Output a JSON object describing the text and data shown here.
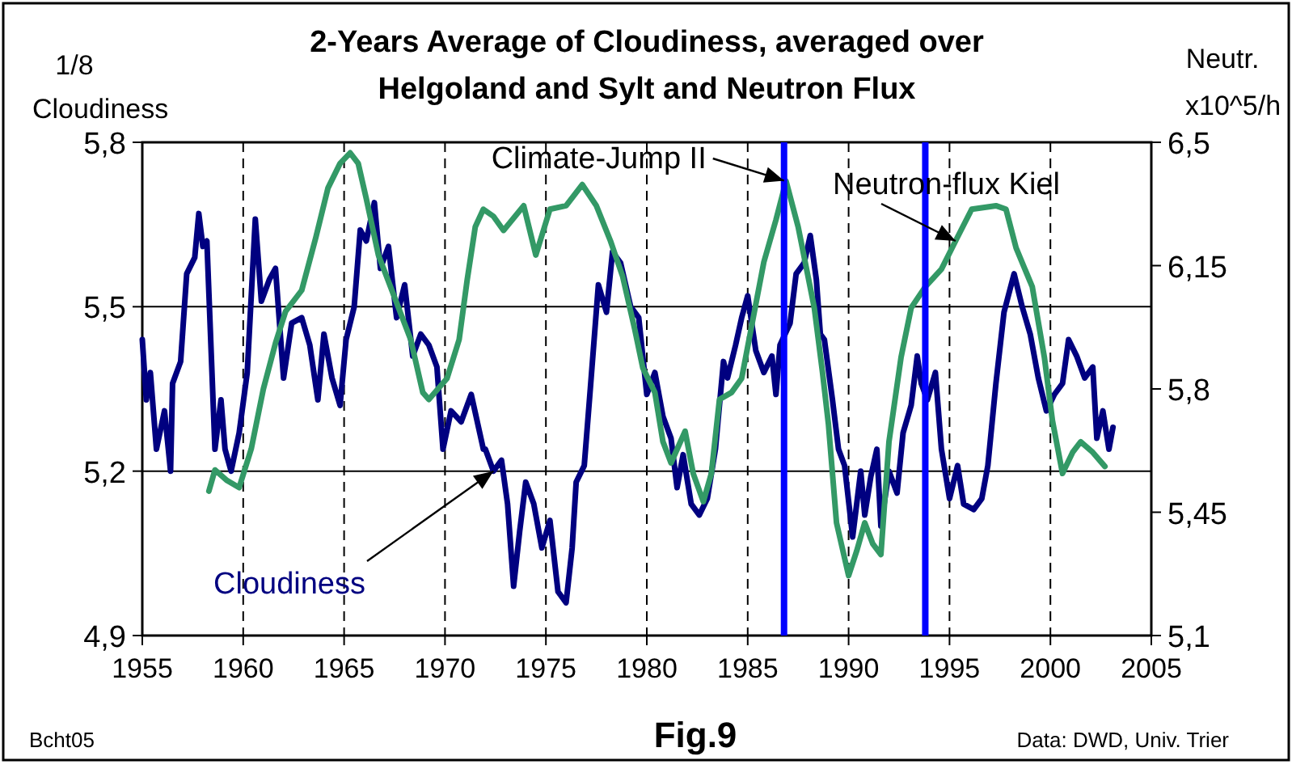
{
  "chart_data": {
    "type": "line",
    "title": "2-Years Average of Cloudiness, averaged over\nHelgoland and Sylt and  Neutron Flux",
    "ylabel": "1/8\nCloudiness",
    "y2label": "Neutr.\nx10^5/h",
    "xlim": [
      1955,
      2005
    ],
    "xticks": [
      1955,
      1960,
      1965,
      1970,
      1975,
      1980,
      1985,
      1990,
      1995,
      2000,
      2005
    ],
    "ylim": [
      4.9,
      5.8
    ],
    "yticks": [
      {
        "value": 4.9,
        "label": "4,9"
      },
      {
        "value": 5.2,
        "label": "5,2"
      },
      {
        "value": 5.5,
        "label": "5,5"
      },
      {
        "value": 5.8,
        "label": "5,8"
      }
    ],
    "y2lim": [
      5.1,
      6.5
    ],
    "y2ticks": [
      {
        "value": 5.1,
        "label": "5,1"
      },
      {
        "value": 5.45,
        "label": "5,45"
      },
      {
        "value": 5.8,
        "label": "5,8"
      },
      {
        "value": 6.15,
        "label": "6,15"
      },
      {
        "value": 6.5,
        "label": "6,5"
      }
    ],
    "grid": true,
    "legend": false,
    "marker": "none",
    "line_style": "solid",
    "series": [
      {
        "name": "Cloudiness",
        "color": "#000080",
        "x": [
          1955.0,
          1955.2,
          1955.4,
          1955.7,
          1956.1,
          1956.4,
          1956.5,
          1956.9,
          1957.2,
          1957.6,
          1957.8,
          1958.0,
          1958.2,
          1958.6,
          1958.9,
          1959.1,
          1959.4,
          1959.8,
          1960.2,
          1960.6,
          1960.9,
          1961.3,
          1961.6,
          1962.0,
          1962.4,
          1962.9,
          1963.3,
          1963.7,
          1964.0,
          1964.4,
          1964.8,
          1965.1,
          1965.5,
          1965.8,
          1966.1,
          1966.5,
          1966.8,
          1967.2,
          1967.6,
          1968.0,
          1968.4,
          1968.8,
          1969.2,
          1969.6,
          1969.9,
          1970.3,
          1970.8,
          1971.3,
          1971.9,
          1972.0,
          1972.4,
          1972.8,
          1973.1,
          1973.4,
          1973.7,
          1974.0,
          1974.4,
          1974.8,
          1975.2,
          1975.6,
          1976.0,
          1976.3,
          1976.5,
          1976.9,
          1977.2,
          1977.6,
          1978.0,
          1978.3,
          1978.7,
          1979.2,
          1979.6,
          1980.0,
          1980.4,
          1980.8,
          1981.2,
          1981.5,
          1981.8,
          1982.2,
          1982.6,
          1983.0,
          1983.4,
          1983.8,
          1984.0,
          1984.4,
          1984.7,
          1985.0,
          1985.4,
          1985.8,
          1986.2,
          1986.4,
          1986.6,
          1987.1,
          1987.4,
          1987.8,
          1988.1,
          1988.4,
          1988.6,
          1988.8,
          1989.2,
          1989.5,
          1989.8,
          1990.2,
          1990.6,
          1990.8,
          1991.1,
          1991.4,
          1991.6,
          1992.0,
          1992.4,
          1992.7,
          1993.1,
          1993.4,
          1993.6,
          1993.9,
          1994.3,
          1994.6,
          1995.0,
          1995.4,
          1995.7,
          1996.2,
          1996.6,
          1996.9,
          1997.3,
          1997.7,
          1998.2,
          1998.6,
          1999.0,
          1999.4,
          1999.8,
          2000.2,
          2000.6,
          2000.9,
          2001.3,
          2001.7,
          2002.1,
          2002.3,
          2002.6,
          2002.9,
          2003.1
        ],
        "values": [
          5.44,
          5.33,
          5.38,
          5.24,
          5.31,
          5.2,
          5.36,
          5.4,
          5.56,
          5.59,
          5.67,
          5.61,
          5.62,
          5.24,
          5.33,
          5.24,
          5.2,
          5.27,
          5.38,
          5.66,
          5.51,
          5.55,
          5.57,
          5.37,
          5.47,
          5.48,
          5.43,
          5.33,
          5.45,
          5.37,
          5.32,
          5.44,
          5.5,
          5.64,
          5.62,
          5.69,
          5.57,
          5.61,
          5.48,
          5.54,
          5.41,
          5.45,
          5.43,
          5.39,
          5.24,
          5.31,
          5.29,
          5.34,
          5.24,
          5.24,
          5.2,
          5.22,
          5.14,
          4.99,
          5.09,
          5.18,
          5.14,
          5.06,
          5.11,
          4.98,
          4.96,
          5.06,
          5.18,
          5.21,
          5.35,
          5.54,
          5.49,
          5.6,
          5.58,
          5.5,
          5.48,
          5.34,
          5.38,
          5.3,
          5.26,
          5.17,
          5.23,
          5.14,
          5.12,
          5.15,
          5.24,
          5.4,
          5.37,
          5.43,
          5.48,
          5.52,
          5.42,
          5.38,
          5.41,
          5.34,
          5.43,
          5.47,
          5.56,
          5.58,
          5.63,
          5.55,
          5.45,
          5.44,
          5.33,
          5.24,
          5.21,
          5.08,
          5.2,
          5.12,
          5.19,
          5.24,
          5.1,
          5.2,
          5.16,
          5.27,
          5.32,
          5.41,
          5.36,
          5.33,
          5.38,
          5.24,
          5.15,
          5.21,
          5.14,
          5.13,
          5.15,
          5.21,
          5.36,
          5.49,
          5.56,
          5.5,
          5.45,
          5.37,
          5.31,
          5.34,
          5.36,
          5.44,
          5.41,
          5.37,
          5.39,
          5.26,
          5.31,
          5.24,
          5.28
        ]
      },
      {
        "name": "Neutron-flux Kiel",
        "color": "#339966",
        "axis": "y2",
        "x": [
          1958.3,
          1958.6,
          1959.2,
          1959.8,
          1960.4,
          1961.0,
          1961.6,
          1962.1,
          1962.9,
          1963.6,
          1964.2,
          1964.8,
          1965.3,
          1965.7,
          1966.1,
          1966.7,
          1967.5,
          1968.3,
          1968.9,
          1969.2,
          1970.1,
          1970.7,
          1971.1,
          1971.5,
          1971.9,
          1972.4,
          1972.9,
          1973.9,
          1974.5,
          1975.2,
          1976.0,
          1976.8,
          1977.5,
          1978.2,
          1978.8,
          1979.4,
          1979.8,
          1980.4,
          1980.8,
          1981.2,
          1981.9,
          1982.3,
          1982.8,
          1983.2,
          1983.6,
          1984.2,
          1984.7,
          1985.1,
          1985.8,
          1986.4,
          1986.9,
          1987.5,
          1988.3,
          1988.7,
          1989.0,
          1989.4,
          1990.0,
          1990.4,
          1990.8,
          1991.2,
          1991.6,
          1992.0,
          1992.6,
          1993.1,
          1993.8,
          1994.6,
          1995.3,
          1996.1,
          1997.3,
          1997.8,
          1998.3,
          1999.1,
          1999.7,
          2000.1,
          2000.6,
          2001.1,
          2001.5,
          2002.1,
          2002.7
        ],
        "values": [
          5.51,
          5.57,
          5.54,
          5.52,
          5.63,
          5.8,
          5.93,
          6.02,
          6.08,
          6.23,
          6.37,
          6.44,
          6.47,
          6.44,
          6.34,
          6.18,
          6.06,
          5.94,
          5.79,
          5.77,
          5.83,
          5.94,
          6.11,
          6.26,
          6.31,
          6.29,
          6.25,
          6.32,
          6.18,
          6.31,
          6.32,
          6.38,
          6.32,
          6.22,
          6.12,
          5.97,
          5.86,
          5.79,
          5.65,
          5.59,
          5.68,
          5.56,
          5.48,
          5.56,
          5.77,
          5.79,
          5.83,
          5.95,
          6.16,
          6.28,
          6.39,
          6.26,
          6.03,
          5.85,
          5.7,
          5.42,
          5.27,
          5.34,
          5.42,
          5.36,
          5.33,
          5.65,
          5.89,
          6.03,
          6.09,
          6.14,
          6.22,
          6.31,
          6.32,
          6.31,
          6.2,
          6.09,
          5.89,
          5.71,
          5.56,
          5.62,
          5.65,
          5.62,
          5.58
        ]
      }
    ],
    "ref_lines": [
      {
        "axis": "x",
        "value": 1986.8,
        "color": "#0000ff"
      },
      {
        "axis": "x",
        "value": 1993.8,
        "color": "#0000ff"
      }
    ],
    "annotations": [
      {
        "text": "Climate-Jump II",
        "x": 1986.8,
        "y": 5.73
      },
      "Bcht05",
      "Fig.9",
      "Data: DWD, Univ. Trier"
    ]
  }
}
